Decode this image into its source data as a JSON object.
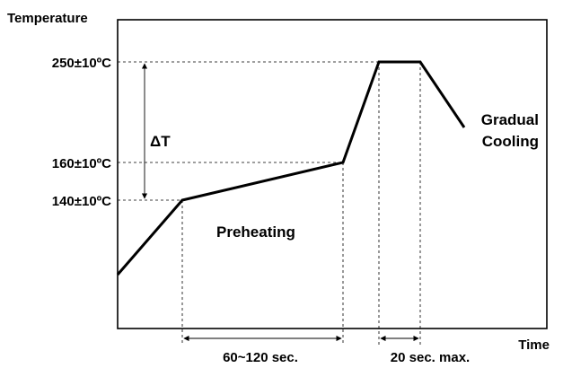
{
  "labels": {
    "y_axis": "Temperature",
    "x_axis": "Time",
    "t250": "250±10ºC",
    "t160": "160±10ºC",
    "t140": "140±10ºC",
    "delta_t": "ΔT",
    "preheating": "Preheating",
    "gradual_line1": "Gradual",
    "gradual_line2": "Cooling",
    "dur_preheat": "60~120 sec.",
    "dur_peak": "20 sec. max."
  }
}
